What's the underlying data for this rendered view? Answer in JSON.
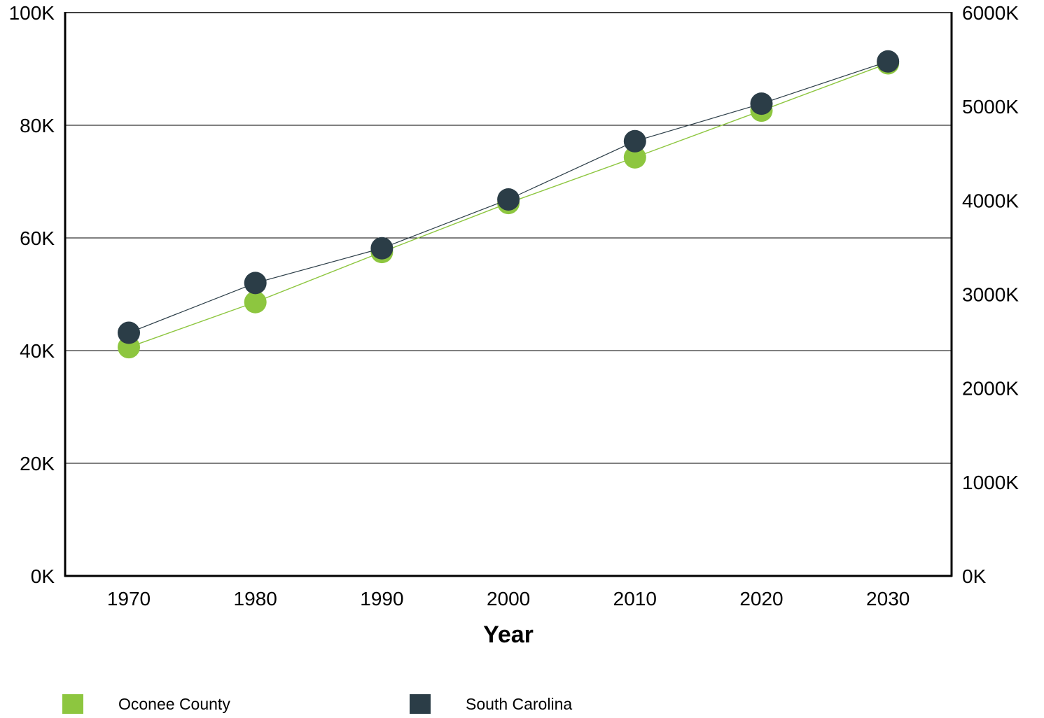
{
  "chart_data": {
    "type": "line",
    "x": [
      1970,
      1980,
      1990,
      2000,
      2010,
      2020,
      2030
    ],
    "xticks": [
      "1970",
      "1980",
      "1990",
      "2000",
      "2010",
      "2020",
      "2030"
    ],
    "xlabel": "Year",
    "ylabel_left": "",
    "ylabel_right": "",
    "y_left": {
      "lim": [
        0,
        100000
      ],
      "ticks": [
        "0K",
        "20K",
        "40K",
        "60K",
        "80K",
        "100K"
      ]
    },
    "y_right": {
      "lim": [
        0,
        6000000
      ],
      "ticks": [
        "0K",
        "1000K",
        "2000K",
        "3000K",
        "4000K",
        "5000K",
        "6000K"
      ]
    },
    "grid": "horizontal",
    "legend_position": "bottom",
    "series": [
      {
        "name": "Oconee County",
        "axis": "left",
        "color": "#8dc63f",
        "values": [
          40600,
          48600,
          57500,
          66200,
          74300,
          82600,
          91000
        ]
      },
      {
        "name": "South Carolina",
        "axis": "right",
        "color": "#2b3d47",
        "values": [
          2590000,
          3120000,
          3490000,
          4010000,
          4630000,
          5030000,
          5480000
        ]
      }
    ]
  }
}
